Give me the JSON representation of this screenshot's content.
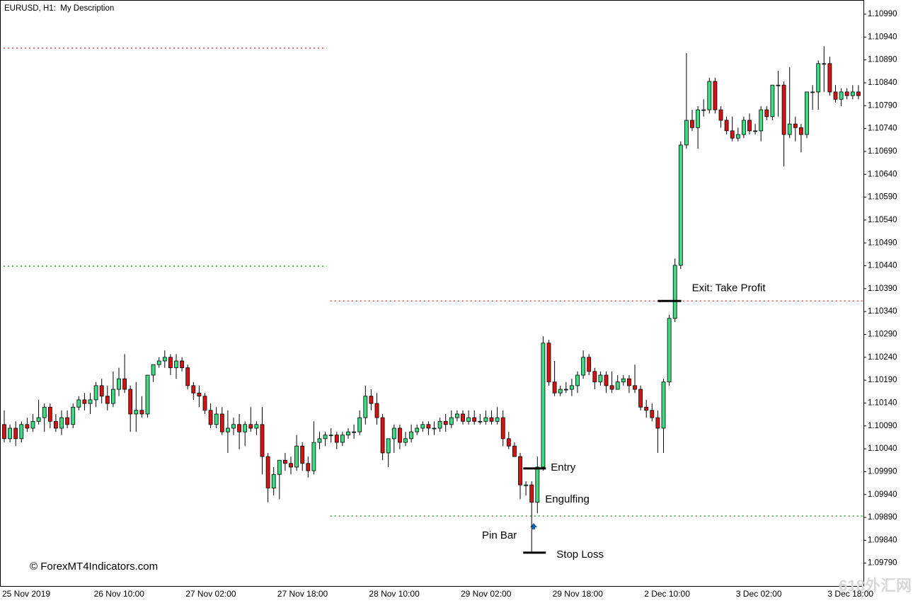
{
  "chart_data": {
    "type": "candlestick",
    "title": "EURUSD, H1:  My Description",
    "watermark": "© ForexMT4Indicators.com",
    "corner_mark": "618外汇网",
    "up_color": "#3ddc84",
    "down_color": "#d41414",
    "ylim": [
      1.0974,
      1.11021
    ],
    "yticks": [
      {
        "value": 1.1099,
        "label": "1.10990"
      },
      {
        "value": 1.1094,
        "label": "1.10940"
      },
      {
        "value": 1.1089,
        "label": "1.10890"
      },
      {
        "value": 1.1084,
        "label": "1.10840"
      },
      {
        "value": 1.1079,
        "label": "1.10790"
      },
      {
        "value": 1.1074,
        "label": "1.10740"
      },
      {
        "value": 1.1069,
        "label": "1.10690"
      },
      {
        "value": 1.1064,
        "label": "1.10640"
      },
      {
        "value": 1.1059,
        "label": "1.10590"
      },
      {
        "value": 1.1054,
        "label": "1.10540"
      },
      {
        "value": 1.1049,
        "label": "1.10490"
      },
      {
        "value": 1.1044,
        "label": "1.10440"
      },
      {
        "value": 1.1039,
        "label": "1.10390"
      },
      {
        "value": 1.1034,
        "label": "1.10340"
      },
      {
        "value": 1.1029,
        "label": "1.10290"
      },
      {
        "value": 1.1024,
        "label": "1.10240"
      },
      {
        "value": 1.1019,
        "label": "1.10190"
      },
      {
        "value": 1.1014,
        "label": "1.10140"
      },
      {
        "value": 1.1009,
        "label": "1.10090"
      },
      {
        "value": 1.1004,
        "label": "1.10040"
      },
      {
        "value": 1.0999,
        "label": "1.09990"
      },
      {
        "value": 1.0994,
        "label": "1.09940"
      },
      {
        "value": 1.0989,
        "label": "1.09890"
      },
      {
        "value": 1.0984,
        "label": "1.09840"
      },
      {
        "value": 1.0979,
        "label": "1.09790"
      }
    ],
    "categories": [
      "25 Nov 2019",
      null,
      null,
      null,
      null,
      null,
      null,
      null,
      null,
      null,
      null,
      null,
      null,
      null,
      null,
      null,
      "26 Nov 10:00",
      null,
      null,
      null,
      null,
      null,
      null,
      null,
      null,
      null,
      null,
      null,
      null,
      null,
      null,
      null,
      "27 Nov 02:00",
      null,
      null,
      null,
      null,
      null,
      null,
      null,
      null,
      null,
      null,
      null,
      null,
      null,
      null,
      null,
      "27 Nov 18:00",
      null,
      null,
      null,
      null,
      null,
      null,
      null,
      null,
      null,
      null,
      null,
      null,
      null,
      null,
      null,
      "28 Nov 10:00",
      null,
      null,
      null,
      null,
      null,
      null,
      null,
      null,
      null,
      null,
      null,
      null,
      null,
      null,
      null,
      "29 Nov 02:00",
      null,
      null,
      null,
      null,
      null,
      null,
      null,
      null,
      null,
      null,
      null,
      null,
      null,
      null,
      null,
      "29 Nov 18:00",
      null,
      null,
      null,
      null,
      null,
      null,
      null,
      null,
      null,
      null,
      null,
      null,
      null,
      null,
      null,
      "2 Dec 10:00",
      null,
      null,
      null,
      null,
      null,
      null,
      null,
      null,
      null,
      null,
      null,
      null,
      null,
      null,
      null,
      "3 Dec 02:00",
      null,
      null,
      null,
      null,
      null,
      null,
      null,
      null,
      null,
      null,
      null,
      null,
      null,
      null,
      null,
      "3 Dec 18:00",
      null,
      null,
      null,
      null,
      null
    ],
    "ohlc": [
      [
        1.10093,
        1.10124,
        1.10054,
        1.10062
      ],
      [
        1.10062,
        1.10093,
        1.10054,
        1.10085
      ],
      [
        1.10085,
        1.101,
        1.10046,
        1.10062
      ],
      [
        1.10062,
        1.101,
        1.10054,
        1.10093
      ],
      [
        1.10093,
        1.10108,
        1.10077,
        1.10085
      ],
      [
        1.10085,
        1.10116,
        1.10077,
        1.101
      ],
      [
        1.101,
        1.10147,
        1.10093,
        1.10108
      ],
      [
        1.10108,
        1.10139,
        1.10077,
        1.10131
      ],
      [
        1.10131,
        1.10139,
        1.10085,
        1.101
      ],
      [
        1.101,
        1.10116,
        1.10077,
        1.10085
      ],
      [
        1.10085,
        1.10124,
        1.1007,
        1.10108
      ],
      [
        1.10108,
        1.10124,
        1.10085,
        1.10093
      ],
      [
        1.10093,
        1.10139,
        1.10085,
        1.10131
      ],
      [
        1.10131,
        1.10155,
        1.10124,
        1.10147
      ],
      [
        1.10147,
        1.10162,
        1.10124,
        1.10139
      ],
      [
        1.10139,
        1.10162,
        1.10116,
        1.10147
      ],
      [
        1.10147,
        1.10186,
        1.10131,
        1.10178
      ],
      [
        1.10178,
        1.10193,
        1.10139,
        1.10155
      ],
      [
        1.10155,
        1.10178,
        1.10124,
        1.10139
      ],
      [
        1.10139,
        1.10209,
        1.10131,
        1.1017
      ],
      [
        1.1017,
        1.10217,
        1.10155,
        1.10193
      ],
      [
        1.10193,
        1.10247,
        1.10162,
        1.1017
      ],
      [
        1.1017,
        1.10178,
        1.10077,
        1.10116
      ],
      [
        1.10116,
        1.10186,
        1.10077,
        1.10124
      ],
      [
        1.10124,
        1.10155,
        1.10108,
        1.10116
      ],
      [
        1.10116,
        1.10201,
        1.10108,
        1.10201
      ],
      [
        1.10201,
        1.10224,
        1.10186,
        1.10224
      ],
      [
        1.10224,
        1.1024,
        1.10217,
        1.10232
      ],
      [
        1.10232,
        1.10255,
        1.10217,
        1.1024
      ],
      [
        1.1024,
        1.10247,
        1.10201,
        1.10217
      ],
      [
        1.10217,
        1.10247,
        1.10193,
        1.10232
      ],
      [
        1.10232,
        1.1024,
        1.10209,
        1.10217
      ],
      [
        1.10217,
        1.10224,
        1.1017,
        1.10178
      ],
      [
        1.10178,
        1.10186,
        1.10147,
        1.10162
      ],
      [
        1.10162,
        1.10178,
        1.10131,
        1.10155
      ],
      [
        1.10155,
        1.10162,
        1.10116,
        1.10124
      ],
      [
        1.10124,
        1.10139,
        1.10085,
        1.10093
      ],
      [
        1.10093,
        1.10131,
        1.10085,
        1.10116
      ],
      [
        1.10116,
        1.10131,
        1.1007,
        1.10077
      ],
      [
        1.10077,
        1.10124,
        1.10031,
        1.10085
      ],
      [
        1.10085,
        1.10108,
        1.1007,
        1.10093
      ],
      [
        1.10093,
        1.10116,
        1.10039,
        1.10077
      ],
      [
        1.10077,
        1.101,
        1.10046,
        1.10093
      ],
      [
        1.10093,
        1.10131,
        1.10077,
        1.10085
      ],
      [
        1.10085,
        1.101,
        1.1007,
        1.10093
      ],
      [
        1.10093,
        1.10131,
        1.09984,
        1.10023
      ],
      [
        1.10023,
        1.10031,
        1.09923,
        1.09954
      ],
      [
        1.09954,
        1.1,
        1.09938,
        1.09984
      ],
      [
        1.09984,
        1.10015,
        1.0993,
        1.10015
      ],
      [
        1.10015,
        1.10031,
        1.09992,
        1.10008
      ],
      [
        1.10008,
        1.10023,
        1.09984,
        1.1
      ],
      [
        1.1,
        1.1007,
        1.09992,
        1.10046
      ],
      [
        1.10046,
        1.10054,
        1.09992,
        1.10008
      ],
      [
        1.10008,
        1.10023,
        1.09977,
        1.09992
      ],
      [
        1.09992,
        1.101,
        1.09984,
        1.10054
      ],
      [
        1.10054,
        1.10077,
        1.10039,
        1.10062
      ],
      [
        1.10062,
        1.10077,
        1.10046,
        1.1007
      ],
      [
        1.1007,
        1.10085,
        1.10054,
        1.1007
      ],
      [
        1.1007,
        1.10077,
        1.10039,
        1.10054
      ],
      [
        1.10054,
        1.10077,
        1.10046,
        1.1007
      ],
      [
        1.1007,
        1.10085,
        1.10062,
        1.10077
      ],
      [
        1.10077,
        1.10093,
        1.10062,
        1.10077
      ],
      [
        1.10077,
        1.10124,
        1.1007,
        1.10108
      ],
      [
        1.10108,
        1.10178,
        1.10093,
        1.10155
      ],
      [
        1.10155,
        1.1017,
        1.10124,
        1.10139
      ],
      [
        1.10139,
        1.10162,
        1.10093,
        1.10108
      ],
      [
        1.10108,
        1.10116,
        1.10015,
        1.10031
      ],
      [
        1.10031,
        1.10062,
        1.1,
        1.10062
      ],
      [
        1.10062,
        1.10093,
        1.10031,
        1.10085
      ],
      [
        1.10085,
        1.10093,
        1.10039,
        1.10054
      ],
      [
        1.10054,
        1.10077,
        1.10046,
        1.10062
      ],
      [
        1.10062,
        1.10093,
        1.10054,
        1.10077
      ],
      [
        1.10077,
        1.10093,
        1.1007,
        1.10085
      ],
      [
        1.10085,
        1.101,
        1.10077,
        1.10093
      ],
      [
        1.10093,
        1.101,
        1.1007,
        1.10085
      ],
      [
        1.10085,
        1.101,
        1.1007,
        1.10085
      ],
      [
        1.10085,
        1.10108,
        1.10077,
        1.101
      ],
      [
        1.101,
        1.10116,
        1.10077,
        1.10093
      ],
      [
        1.10093,
        1.10124,
        1.10085,
        1.10108
      ],
      [
        1.10108,
        1.10124,
        1.101,
        1.10116
      ],
      [
        1.10116,
        1.10124,
        1.10093,
        1.101
      ],
      [
        1.101,
        1.10124,
        1.10093,
        1.10108
      ],
      [
        1.10108,
        1.10124,
        1.10093,
        1.101
      ],
      [
        1.101,
        1.10116,
        1.10093,
        1.101
      ],
      [
        1.101,
        1.10124,
        1.10093,
        1.10108
      ],
      [
        1.10108,
        1.10124,
        1.10093,
        1.101
      ],
      [
        1.101,
        1.10131,
        1.10093,
        1.10108
      ],
      [
        1.10108,
        1.10124,
        1.10046,
        1.10062
      ],
      [
        1.10062,
        1.10077,
        1.10039,
        1.10046
      ],
      [
        1.10046,
        1.10054,
        1.10023,
        1.10023
      ],
      [
        1.10023,
        1.10031,
        1.0993,
        1.09961
      ],
      [
        1.09961,
        1.09969,
        1.09938,
        1.09961
      ],
      [
        1.09961,
        1.09969,
        1.09814,
        1.09923
      ],
      [
        1.09923,
        1.10023,
        1.09899,
        1.1
      ],
      [
        1.1,
        1.10286,
        1.09992,
        1.10271
      ],
      [
        1.10271,
        1.10278,
        1.10178,
        1.10186
      ],
      [
        1.10186,
        1.10232,
        1.10155,
        1.10162
      ],
      [
        1.10162,
        1.10178,
        1.10155,
        1.1017
      ],
      [
        1.1017,
        1.10186,
        1.10162,
        1.1017
      ],
      [
        1.1017,
        1.10193,
        1.10155,
        1.10178
      ],
      [
        1.10178,
        1.10209,
        1.10162,
        1.10201
      ],
      [
        1.10201,
        1.10255,
        1.10193,
        1.1024
      ],
      [
        1.1024,
        1.10247,
        1.10201,
        1.10209
      ],
      [
        1.10209,
        1.10217,
        1.1017,
        1.10186
      ],
      [
        1.10186,
        1.10209,
        1.10178,
        1.10201
      ],
      [
        1.10201,
        1.10209,
        1.10162,
        1.10178
      ],
      [
        1.10178,
        1.10209,
        1.10162,
        1.1017
      ],
      [
        1.1017,
        1.10201,
        1.1017,
        1.10186
      ],
      [
        1.10186,
        1.10201,
        1.10178,
        1.10193
      ],
      [
        1.10193,
        1.10201,
        1.10162,
        1.10178
      ],
      [
        1.10178,
        1.10224,
        1.10162,
        1.1017
      ],
      [
        1.1017,
        1.10178,
        1.10124,
        1.10131
      ],
      [
        1.10131,
        1.10147,
        1.10108,
        1.10124
      ],
      [
        1.10124,
        1.10139,
        1.101,
        1.10108
      ],
      [
        1.10108,
        1.10124,
        1.10031,
        1.10085
      ],
      [
        1.10085,
        1.10193,
        1.10031,
        1.10186
      ],
      [
        1.10186,
        1.10333,
        1.10178,
        1.10325
      ],
      [
        1.10325,
        1.10456,
        1.10317,
        1.10441
      ],
      [
        1.10441,
        1.10712,
        1.10433,
        1.10704
      ],
      [
        1.10704,
        1.10905,
        1.10696,
        1.10758
      ],
      [
        1.10758,
        1.10781,
        1.10735,
        1.10742
      ],
      [
        1.10742,
        1.10789,
        1.10696,
        1.10781
      ],
      [
        1.10781,
        1.10804,
        1.10766,
        1.10781
      ],
      [
        1.10781,
        1.10851,
        1.10773,
        1.10843
      ],
      [
        1.10843,
        1.10851,
        1.10773,
        1.10781
      ],
      [
        1.10781,
        1.10789,
        1.10742,
        1.10758
      ],
      [
        1.10758,
        1.10766,
        1.10727,
        1.10735
      ],
      [
        1.10735,
        1.10766,
        1.10712,
        1.10719
      ],
      [
        1.10719,
        1.10742,
        1.10712,
        1.10727
      ],
      [
        1.10727,
        1.10766,
        1.10719,
        1.10758
      ],
      [
        1.10758,
        1.10773,
        1.10727,
        1.10735
      ],
      [
        1.10735,
        1.1075,
        1.10727,
        1.10735
      ],
      [
        1.10735,
        1.10789,
        1.10712,
        1.10781
      ],
      [
        1.10781,
        1.10789,
        1.10758,
        1.10766
      ],
      [
        1.10766,
        1.10835,
        1.10758,
        1.10835
      ],
      [
        1.10835,
        1.10866,
        1.10766,
        1.10835
      ],
      [
        1.10835,
        1.10843,
        1.10657,
        1.10727
      ],
      [
        1.10727,
        1.10874,
        1.10719,
        1.1075
      ],
      [
        1.1075,
        1.10766,
        1.10712,
        1.10742
      ],
      [
        1.10742,
        1.1075,
        1.10688,
        1.10727
      ],
      [
        1.10727,
        1.1082,
        1.10719,
        1.1082
      ],
      [
        1.1082,
        1.10835,
        1.10781,
        1.1082
      ],
      [
        1.1082,
        1.10889,
        1.10781,
        1.10882
      ],
      [
        1.10882,
        1.1092,
        1.1082,
        1.10882
      ],
      [
        1.10882,
        1.10897,
        1.10812,
        1.1082
      ],
      [
        1.1082,
        1.10835,
        1.10797,
        1.10804
      ],
      [
        1.10804,
        1.10828,
        1.10789,
        1.1082
      ],
      [
        1.1082,
        1.10828,
        1.10804,
        1.10812
      ],
      [
        1.10812,
        1.10835,
        1.10804,
        1.1082
      ],
      [
        1.1082,
        1.10835,
        1.10804,
        1.10812
      ]
    ],
    "levels": [
      {
        "value": 1.10916,
        "color": "#e8403f",
        "from": 0,
        "to": 56
      },
      {
        "value": 1.10439,
        "color": "#2e9a2e",
        "from": 0,
        "to": 56
      },
      {
        "value": 1.10363,
        "color": "#e8403f",
        "from": 57,
        "to": 149
      },
      {
        "value": 1.09893,
        "color": "#2e9a2e",
        "from": 57,
        "to": 149
      }
    ],
    "annotations": [
      {
        "text": "Entry",
        "value": 1.09997,
        "index": 93
      },
      {
        "text": "Stop Loss",
        "value": 1.09813,
        "index": 93
      },
      {
        "text": "Exit: Take Profit",
        "value": 1.10363,
        "index": 116
      },
      {
        "text": "Pin Bar",
        "index": 92
      },
      {
        "text": "Engulfing",
        "index": 93
      }
    ]
  }
}
